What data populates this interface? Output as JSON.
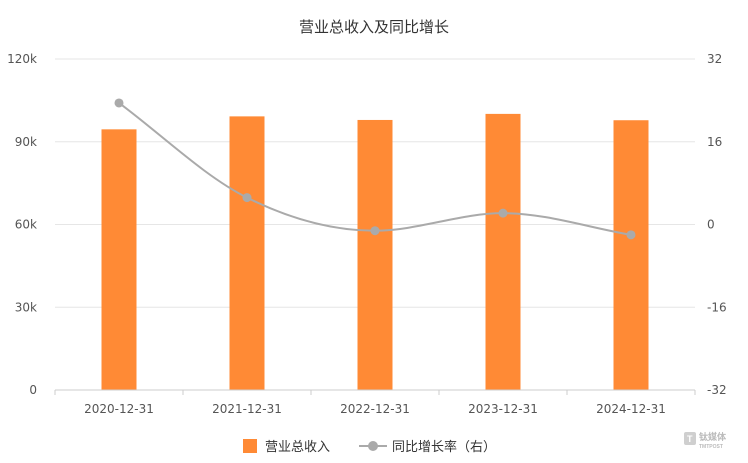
{
  "chart_data": {
    "type": "bar",
    "title": "营业总收入及同比增长",
    "categories": [
      "2020-12-31",
      "2021-12-31",
      "2022-12-31",
      "2023-12-31",
      "2024-12-31"
    ],
    "series": [
      {
        "name": "营业总收入",
        "type": "bar",
        "axis": "left",
        "color": "#ff8a35",
        "values": [
          94500,
          99200,
          97900,
          100100,
          97800
        ]
      },
      {
        "name": "同比增长率（右）",
        "type": "line",
        "axis": "right",
        "color": "#aaaaaa",
        "smooth": true,
        "values": [
          23.5,
          5.2,
          -1.2,
          2.2,
          -2.0
        ]
      }
    ],
    "y_left": {
      "min": 0,
      "max": 120000,
      "ticks": [
        0,
        30000,
        60000,
        90000,
        120000
      ],
      "tick_labels": [
        "0",
        "30k",
        "60k",
        "90k",
        "120k"
      ]
    },
    "y_right": {
      "min": -32,
      "max": 32,
      "ticks": [
        -32,
        -16,
        0,
        16,
        32
      ],
      "tick_labels": [
        "-32",
        "-16",
        "0",
        "16",
        "32"
      ]
    },
    "grid": true,
    "legend_position": "bottom-center"
  },
  "watermark": {
    "text": "钛媒体",
    "sub": "TMTPOST"
  }
}
